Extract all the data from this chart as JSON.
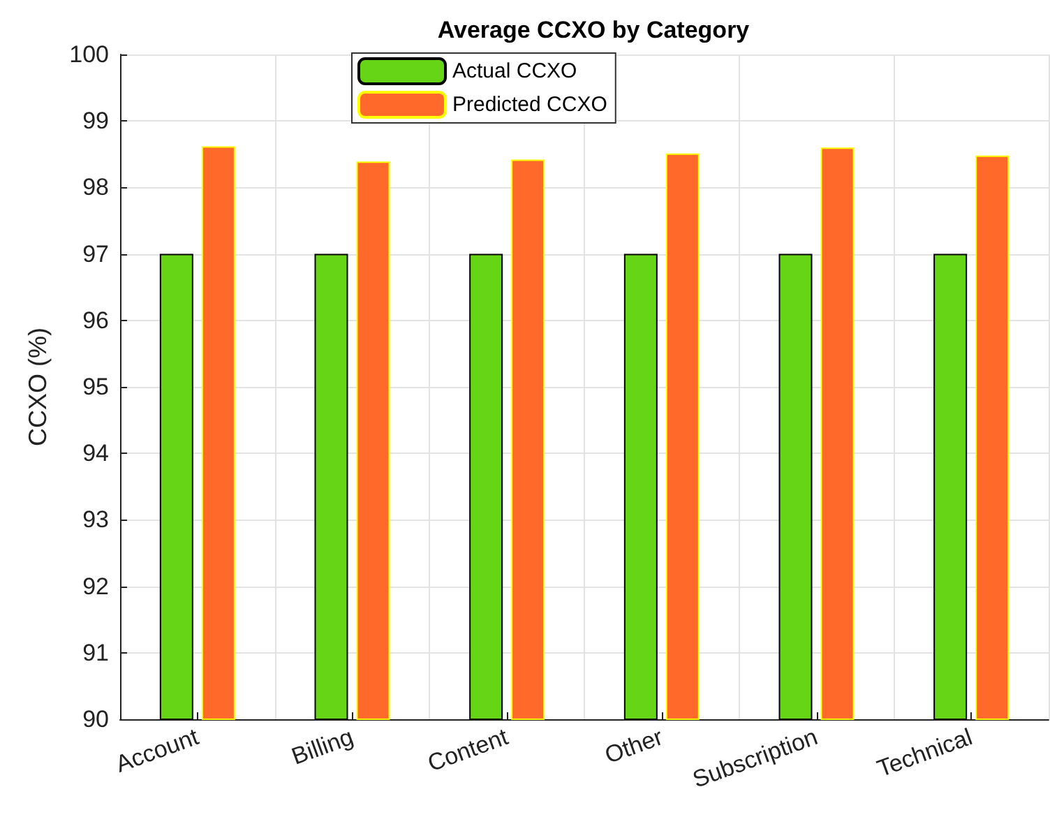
{
  "chart_data": {
    "type": "bar",
    "title": "Average CCXO by Category",
    "ylabel": "CCXO (%)",
    "categories": [
      "Account",
      "Billing",
      "Content",
      "Other",
      "Subscription",
      "Technical"
    ],
    "series": [
      {
        "name": "Actual CCXO",
        "color": "#66d516",
        "values": [
          97,
          97,
          97,
          97,
          97,
          97
        ]
      },
      {
        "name": "Predicted CCXO",
        "color": "#ff6a2a",
        "values": [
          98.62,
          98.39,
          98.42,
          98.51,
          98.6,
          98.48
        ]
      }
    ],
    "ylim": [
      90,
      100
    ],
    "yticks": [
      90,
      91,
      92,
      93,
      94,
      95,
      96,
      97,
      98,
      99,
      100
    ],
    "grid": true,
    "legend": "top"
  }
}
